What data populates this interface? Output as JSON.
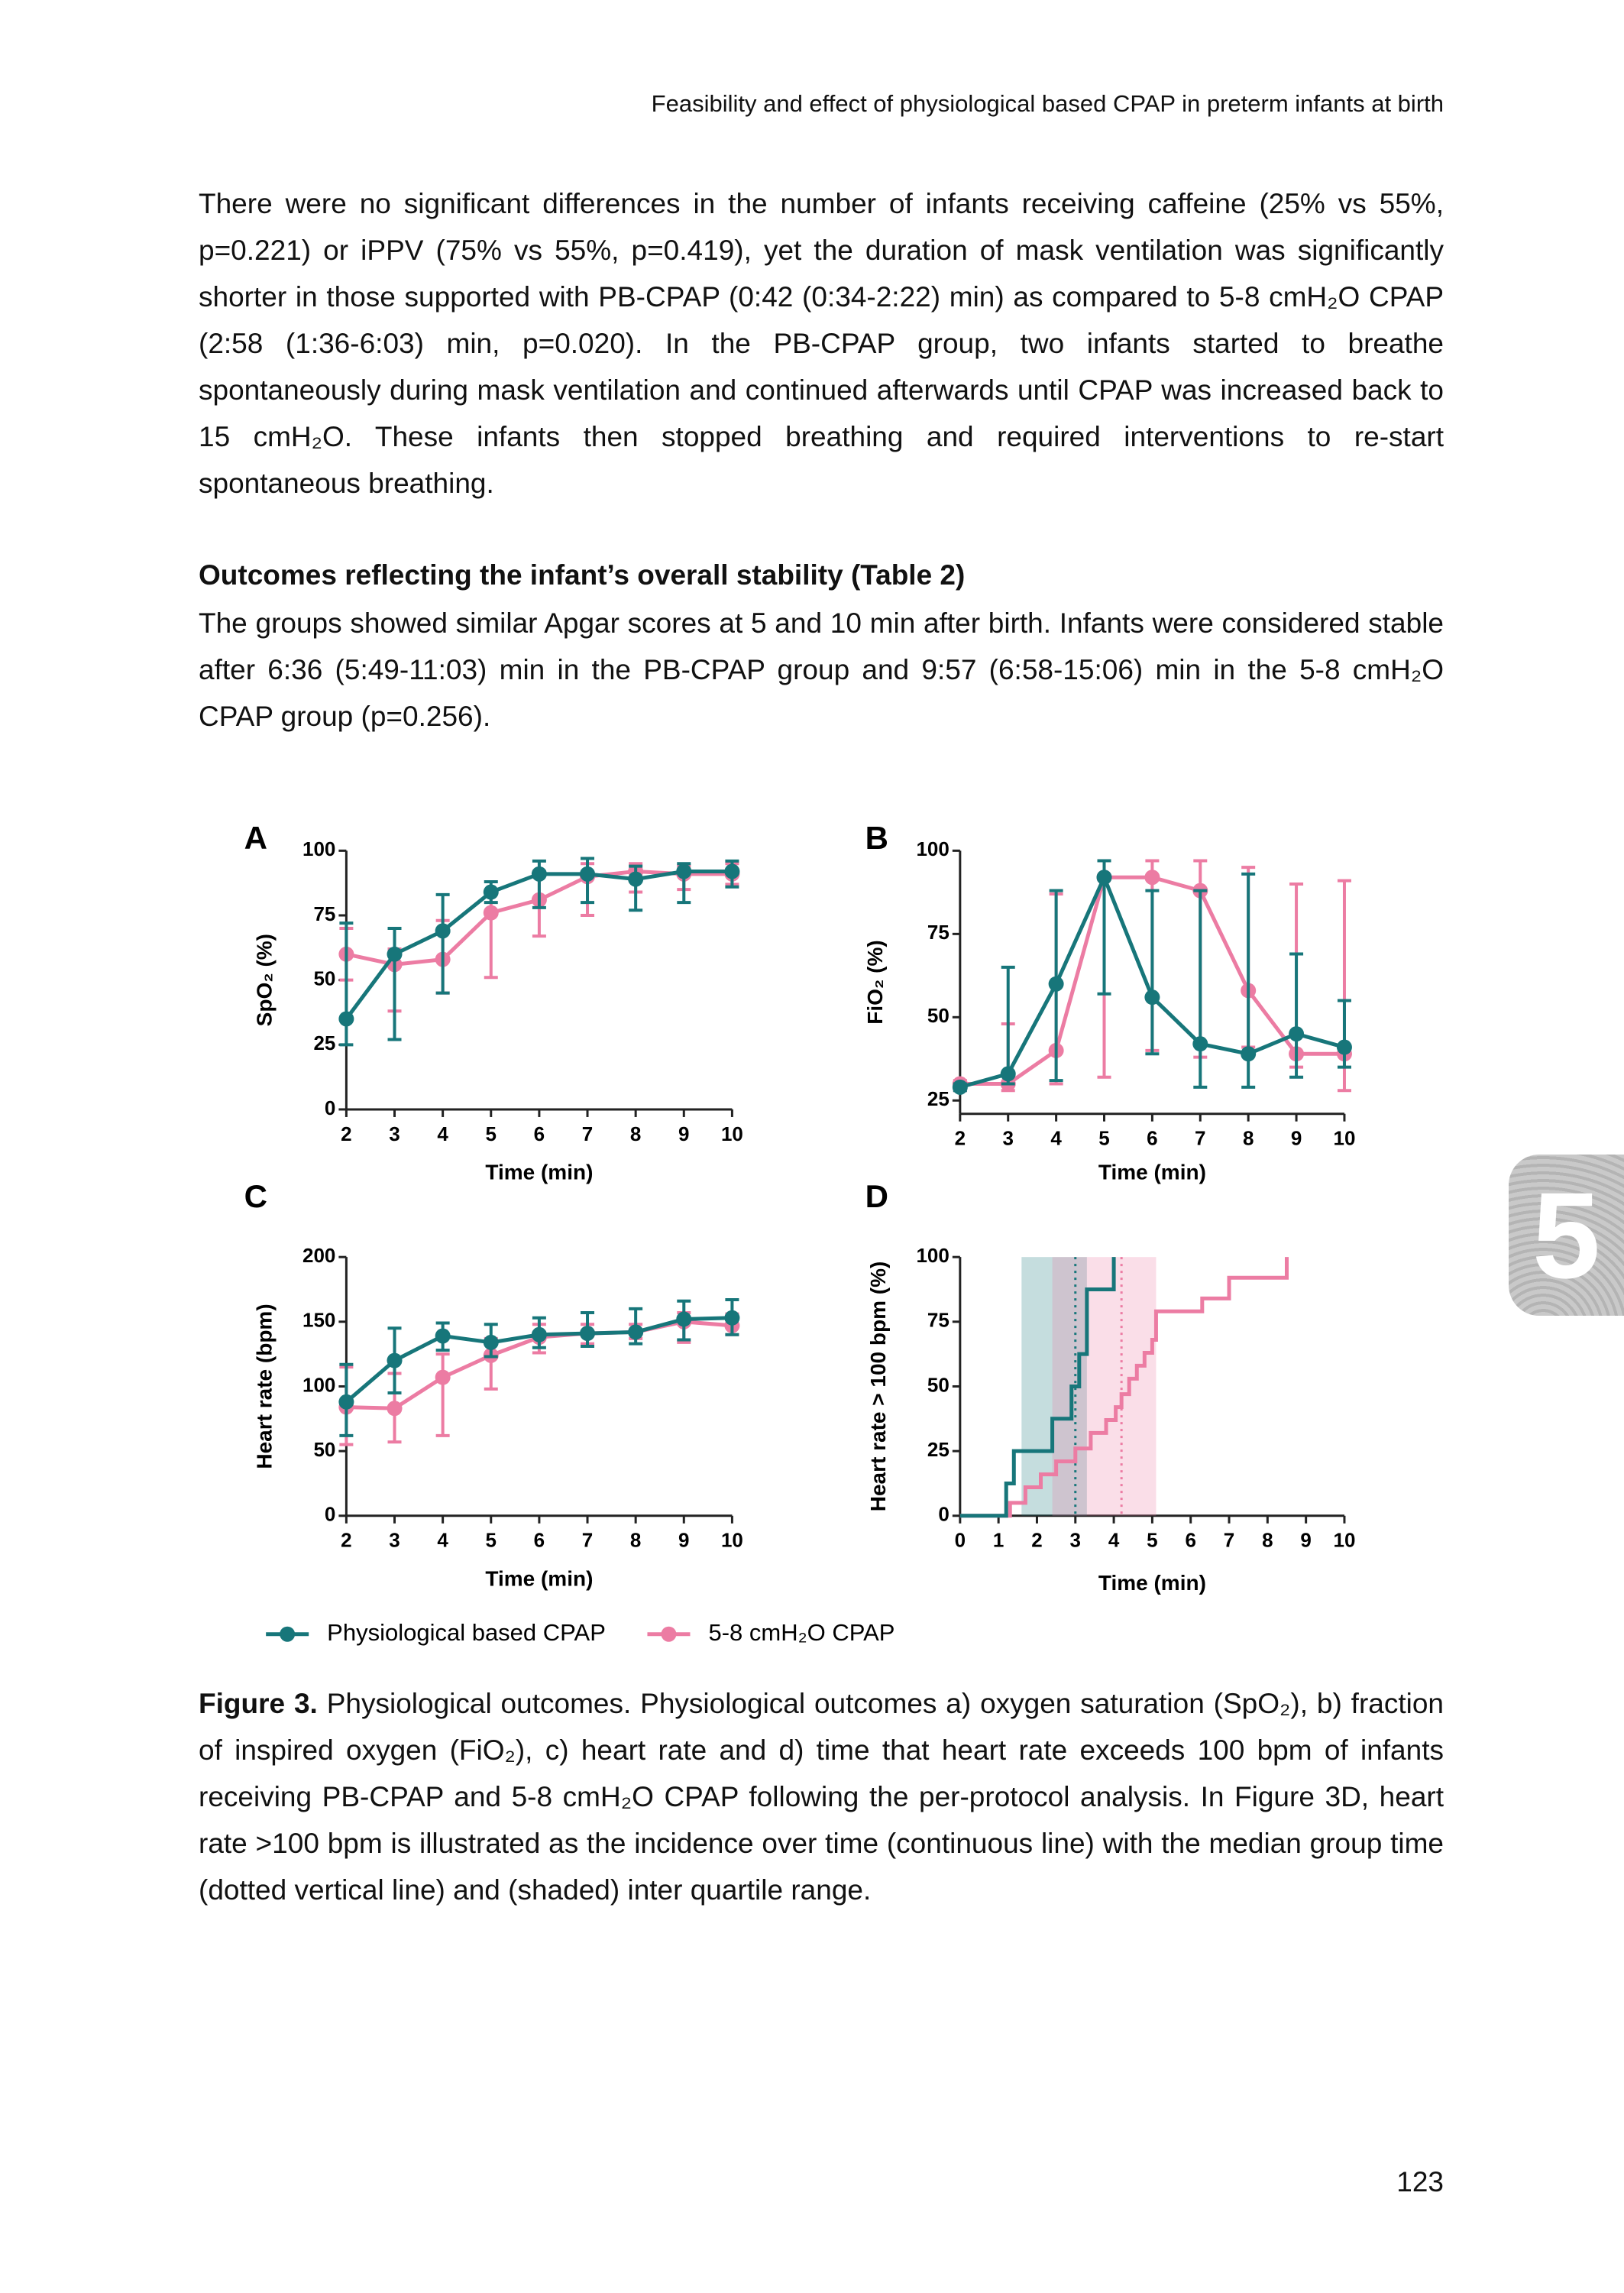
{
  "header": "Feasibility and effect of physiological based CPAP in preterm infants at birth",
  "paragraph_1": "There were no significant differences in the number of infants receiving caffeine (25% vs 55%, p=0.221) or iPPV (75% vs 55%, p=0.419), yet the duration of mask ventilation was significantly shorter in those supported with PB-CPAP (0:42 (0:34-2:22) min) as compared to 5-8 cmH₂O CPAP (2:58 (1:36-6:03) min, p=0.020). In the PB-CPAP group, two infants started to breathe spontaneously during mask ventilation and continued afterwards until CPAP was increased back to 15 cmH₂O. These infants then stopped breathing and required interventions to re-start spontaneous breathing.",
  "section": {
    "heading": "Outcomes reflecting the infant’s overall stability (Table 2)",
    "paragraph": "The groups showed similar Apgar scores at 5 and 10 min after birth. Infants were considered stable after 6:36 (5:49-11:03) min in the PB-CPAP group and 9:57 (6:58-15:06) min in the 5-8 cmH₂O CPAP group (p=0.256)."
  },
  "chart_data": [
    {
      "type": "line",
      "panel": "A",
      "ylabel": "SpO₂ (%)",
      "xlabel": "Time (min)",
      "x": [
        2,
        3,
        4,
        5,
        6,
        7,
        8,
        9,
        10
      ],
      "xlim": [
        2,
        10
      ],
      "xticks": [
        2,
        3,
        4,
        5,
        6,
        7,
        8,
        9,
        10
      ],
      "ylim": [
        0,
        100
      ],
      "yticks": [
        0,
        25,
        50,
        75,
        100
      ],
      "series": [
        {
          "name": "Physiological based CPAP",
          "color": "#17767a",
          "values": [
            35,
            60,
            69,
            84,
            91,
            91,
            89,
            92,
            92
          ],
          "lower": [
            25,
            27,
            45,
            80,
            78,
            80,
            77,
            80,
            86
          ],
          "upper": [
            72,
            70,
            83,
            88,
            96,
            97,
            94,
            95,
            96
          ]
        },
        {
          "name": "5-8 cmH₂O CPAP",
          "color": "#ec7ca3",
          "values": [
            60,
            56,
            58,
            76,
            81,
            90,
            92,
            91,
            91
          ],
          "lower": [
            50,
            38,
            45,
            51,
            67,
            75,
            84,
            85,
            87
          ],
          "upper": [
            70,
            62,
            73,
            84,
            92,
            95,
            95,
            94,
            95
          ]
        }
      ]
    },
    {
      "type": "line",
      "panel": "B",
      "ylabel": "FiO₂ (%)",
      "xlabel": "Time (min)",
      "x": [
        2,
        3,
        4,
        5,
        6,
        7,
        8,
        9,
        10
      ],
      "xlim": [
        2,
        10
      ],
      "xticks": [
        2,
        3,
        4,
        5,
        6,
        7,
        8,
        9,
        10
      ],
      "ylim": [
        21,
        100
      ],
      "yticks": [
        25,
        50,
        75,
        100
      ],
      "series": [
        {
          "color": "#17767a",
          "values": [
            29,
            33,
            60,
            92,
            56,
            42,
            39,
            45,
            41
          ],
          "lower": [
            28,
            30,
            31,
            57,
            39,
            29,
            29,
            32,
            35
          ],
          "upper": [
            30,
            65,
            88,
            97,
            88,
            88,
            93,
            69,
            55
          ]
        },
        {
          "color": "#ec7ca3",
          "values": [
            30,
            30,
            40,
            92,
            92,
            88,
            58,
            39,
            39
          ],
          "lower": [
            28,
            28,
            30,
            32,
            40,
            38,
            41,
            35,
            28
          ],
          "upper": [
            31,
            48,
            87,
            97,
            97,
            97,
            95,
            90,
            91
          ]
        }
      ]
    },
    {
      "type": "line",
      "panel": "C",
      "ylabel": "Heart rate (bpm)",
      "xlabel": "Time (min)",
      "x": [
        2,
        3,
        4,
        5,
        6,
        7,
        8,
        9,
        10
      ],
      "xlim": [
        2,
        10
      ],
      "xticks": [
        2,
        3,
        4,
        5,
        6,
        7,
        8,
        9,
        10
      ],
      "ylim": [
        0,
        200
      ],
      "yticks": [
        0,
        50,
        100,
        150,
        200
      ],
      "series": [
        {
          "color": "#17767a",
          "values": [
            88,
            120,
            139,
            134,
            140,
            141,
            142,
            152,
            153
          ],
          "lower": [
            62,
            95,
            128,
            123,
            130,
            131,
            133,
            136,
            140
          ],
          "upper": [
            117,
            145,
            149,
            148,
            153,
            157,
            160,
            166,
            167
          ]
        },
        {
          "color": "#ec7ca3",
          "values": [
            84,
            83,
            107,
            124,
            138,
            141,
            142,
            150,
            147
          ],
          "lower": [
            55,
            57,
            62,
            98,
            126,
            133,
            137,
            134,
            140
          ],
          "upper": [
            115,
            110,
            125,
            137,
            148,
            148,
            148,
            157,
            156
          ]
        }
      ]
    },
    {
      "type": "step",
      "panel": "D",
      "ylabel": "Heart rate > 100 bpm (%)",
      "xlabel": "Time (min)",
      "xlim": [
        0,
        10
      ],
      "xticks": [
        0,
        1,
        2,
        3,
        4,
        5,
        6,
        7,
        8,
        9,
        10
      ],
      "ylim": [
        0,
        100
      ],
      "yticks": [
        0,
        25,
        50,
        75,
        100
      ],
      "series": [
        {
          "color": "#17767a",
          "x": [
            0,
            1.2,
            1.4,
            2.4,
            2.9,
            3.1,
            3.3,
            4.0
          ],
          "values": [
            0,
            12.5,
            25,
            37.5,
            50,
            62.5,
            87.5,
            100
          ],
          "median": 3.0,
          "iqr": [
            1.6,
            3.3
          ]
        },
        {
          "color": "#ec7ca3",
          "x": [
            0,
            1.3,
            1.7,
            2.1,
            2.5,
            3.0,
            3.4,
            3.8,
            4.05,
            4.2,
            4.4,
            4.6,
            4.8,
            5.0,
            5.1,
            6.3,
            7.0,
            8.5
          ],
          "values": [
            0,
            5,
            11,
            16,
            21,
            26,
            32,
            37,
            42,
            47,
            53,
            58,
            63,
            68,
            79,
            84,
            92,
            100
          ],
          "median": 4.2,
          "iqr": [
            2.4,
            5.1
          ]
        }
      ]
    }
  ],
  "caption": {
    "label": "Figure 3.",
    "text": "Physiological outcomes. Physiological outcomes a) oxygen saturation (SpO₂), b) fraction of inspired oxygen (FiO₂), c) heart rate and d) time that heart rate exceeds 100 bpm of infants receiving PB-CPAP and 5-8 cmH₂O CPAP following the per-protocol analysis. In Figure 3D, heart rate >100 bpm is illustrated as the incidence over time (continuous line) with the median group time (dotted vertical line) and (shaded) inter quartile range."
  },
  "section_tab": "5",
  "page_number": "123"
}
